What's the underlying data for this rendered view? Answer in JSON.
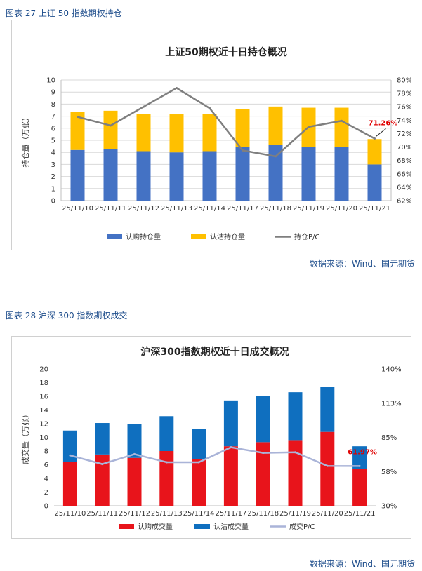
{
  "figure1": {
    "caption": "图表 27  上证 50 指数期权持仓",
    "source": "数据来源：Wind、国元期货",
    "chart_data": {
      "type": "bar",
      "title": "上证50期权近十日持仓概况",
      "ylabel": "持仓量（万张）",
      "categories": [
        "25/11/10",
        "25/11/11",
        "25/11/12",
        "25/11/13",
        "25/11/14",
        "25/11/17",
        "25/11/18",
        "25/11/19",
        "25/11/20",
        "25/11/21"
      ],
      "ylim": [
        0,
        10
      ],
      "yticks": [
        "0",
        "1",
        "2",
        "3",
        "4",
        "5",
        "6",
        "7",
        "8",
        "9",
        "10"
      ],
      "y2lim": [
        62,
        80
      ],
      "y2ticks": [
        "62%",
        "64%",
        "66%",
        "68%",
        "70%",
        "72%",
        "74%",
        "76%",
        "78%",
        "80%"
      ],
      "series": [
        {
          "name": "认购持仓量",
          "kind": "bar",
          "color": "#4472c4",
          "values": [
            4.2,
            4.25,
            4.1,
            4.0,
            4.1,
            4.45,
            4.6,
            4.45,
            4.45,
            3.0
          ]
        },
        {
          "name": "认沽持仓量",
          "kind": "bar",
          "color": "#ffc000",
          "values": [
            3.15,
            3.2,
            3.1,
            3.15,
            3.1,
            3.15,
            3.2,
            3.25,
            3.25,
            2.1
          ]
        },
        {
          "name": "持仓P/C",
          "kind": "line",
          "color": "#7f7f7f",
          "values": [
            74.5,
            73.2,
            76.0,
            78.8,
            75.8,
            69.5,
            68.6,
            73.0,
            73.9,
            71.26
          ]
        }
      ],
      "annotation": "71.26%",
      "legend": "bottom"
    }
  },
  "figure2": {
    "caption": "图表 28  沪深 300 指数期权成交",
    "source": "数据来源：Wind、国元期货",
    "chart_data": {
      "type": "bar",
      "title": "沪深300指数期权近十日成交概况",
      "ylabel": "成交量（万张）",
      "categories": [
        "25/11/10",
        "25/11/11",
        "25/11/12",
        "25/11/13",
        "25/11/14",
        "25/11/17",
        "25/11/18",
        "25/11/19",
        "25/11/20",
        "25/11/21"
      ],
      "ylim": [
        0,
        20
      ],
      "yticks": [
        "0",
        "2",
        "4",
        "6",
        "8",
        "10",
        "12",
        "14",
        "16",
        "18",
        "20"
      ],
      "y2lim": [
        30,
        140
      ],
      "y2ticks": [
        "30%",
        "58%",
        "85%",
        "113%",
        "140%"
      ],
      "series": [
        {
          "name": "认购成交量",
          "kind": "bar",
          "color": "#e8141b",
          "values": [
            6.4,
            7.5,
            7.0,
            8.0,
            6.8,
            8.7,
            9.3,
            9.6,
            10.8,
            5.4
          ]
        },
        {
          "name": "认沽成交量",
          "kind": "bar",
          "color": "#0f6fbf",
          "values": [
            4.6,
            4.6,
            5.0,
            5.1,
            4.4,
            6.7,
            6.7,
            7.0,
            6.6,
            3.3
          ]
        },
        {
          "name": "成交P/C",
          "kind": "line",
          "color": "#aab4d8",
          "values": [
            70.5,
            63.5,
            71.5,
            65.0,
            65.0,
            77.0,
            72.5,
            73.0,
            62.0,
            61.97
          ]
        }
      ],
      "annotation": "61.97%",
      "legend": "bottom"
    }
  }
}
